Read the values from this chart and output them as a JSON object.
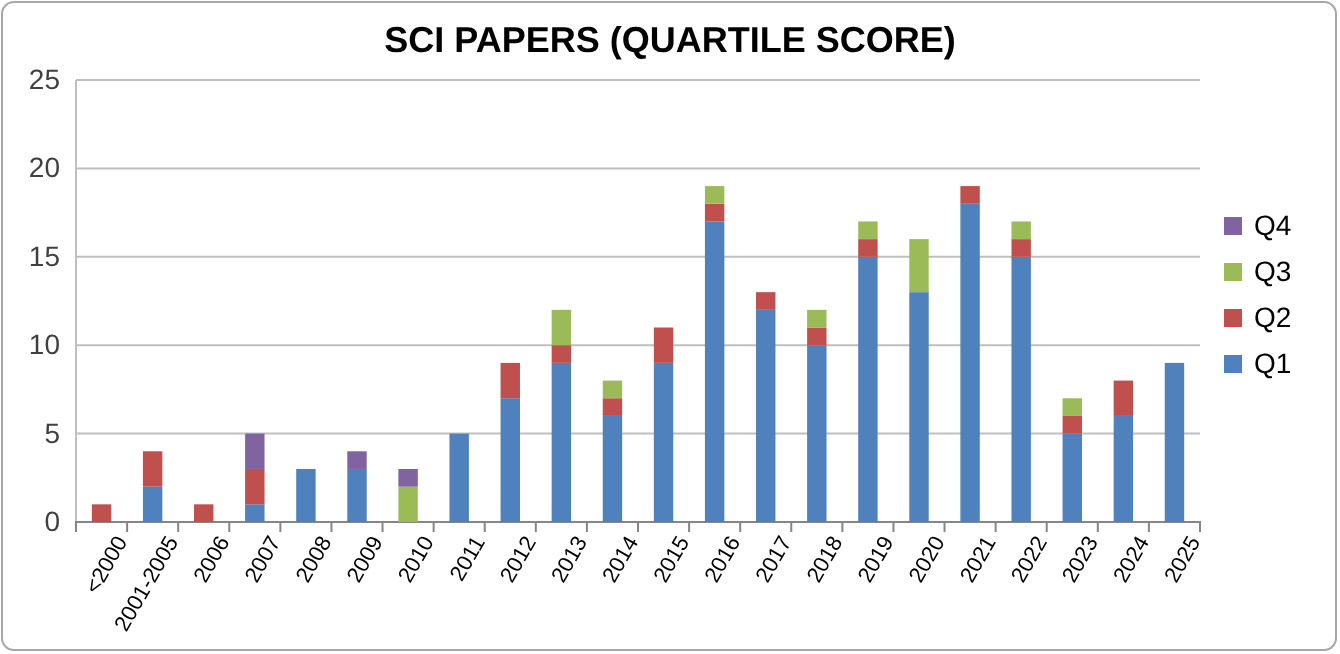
{
  "chart_data": {
    "type": "bar",
    "title": "SCI PAPERS (QUARTILE SCORE)",
    "stacked": true,
    "categories": [
      "<2000",
      "2001-2005",
      "2006",
      "2007",
      "2008",
      "2009",
      "2010",
      "2011",
      "2012",
      "2013",
      "2014",
      "2015",
      "2016",
      "2017",
      "2018",
      "2019",
      "2020",
      "2021",
      "2022",
      "2023",
      "2024",
      "2025"
    ],
    "series": [
      {
        "name": "Q1",
        "color": "#4f81bd",
        "values": [
          0,
          2,
          0,
          1,
          3,
          3,
          0,
          5,
          7,
          9,
          6,
          9,
          17,
          12,
          10,
          15,
          13,
          18,
          15,
          5,
          6,
          9
        ]
      },
      {
        "name": "Q2",
        "color": "#c0504d",
        "values": [
          1,
          2,
          1,
          2,
          0,
          0,
          0,
          0,
          2,
          1,
          1,
          2,
          1,
          1,
          1,
          1,
          0,
          1,
          1,
          1,
          2,
          0
        ]
      },
      {
        "name": "Q3",
        "color": "#9bbb59",
        "values": [
          0,
          0,
          0,
          0,
          0,
          0,
          2,
          0,
          0,
          2,
          1,
          0,
          1,
          0,
          1,
          1,
          3,
          0,
          1,
          1,
          0,
          0
        ]
      },
      {
        "name": "Q4",
        "color": "#8064a2",
        "values": [
          0,
          0,
          0,
          2,
          0,
          1,
          1,
          0,
          0,
          0,
          0,
          0,
          0,
          0,
          0,
          0,
          0,
          0,
          0,
          0,
          0,
          0
        ]
      }
    ],
    "ylim": [
      0,
      25
    ],
    "yticks": [
      0,
      5,
      10,
      15,
      20,
      25
    ],
    "grid": "y",
    "legend": "right"
  }
}
